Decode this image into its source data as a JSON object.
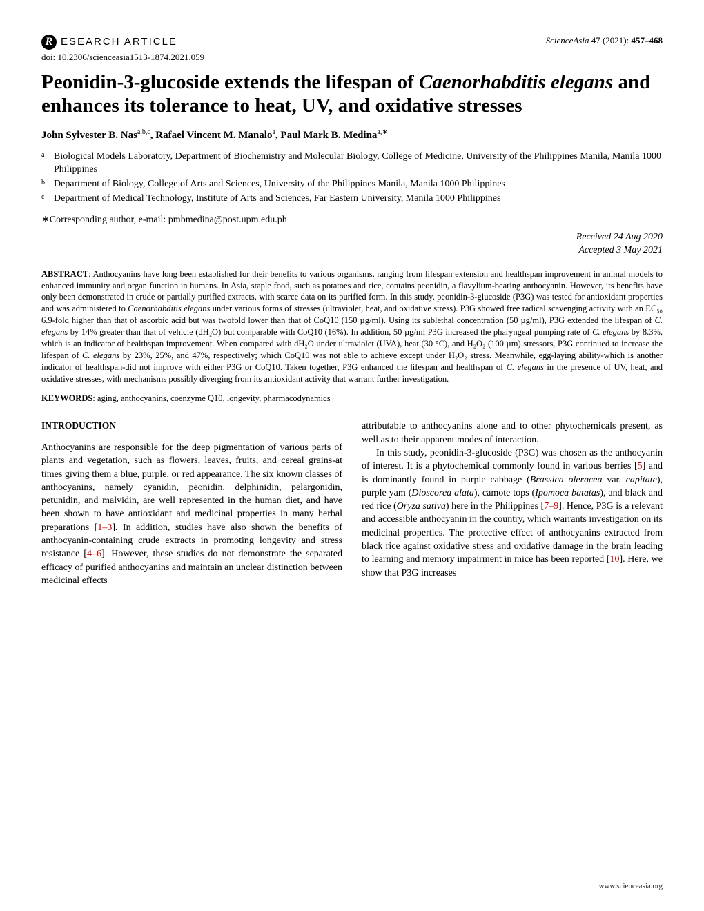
{
  "header": {
    "badge_letter": "R",
    "article_type": "ESEARCH  ARTICLE",
    "journal_name": "ScienceAsia",
    "volume": "47",
    "year": "(2021):",
    "pages": "457–468",
    "doi": "doi: 10.2306/scienceasia1513-1874.2021.059"
  },
  "title": {
    "part1": "Peonidin-3-glucoside extends the lifespan of ",
    "species": "Caenorhabditis elegans",
    "part2": " and enhances its tolerance to heat, UV, and oxidative stresses"
  },
  "authors": {
    "a1_name": "John Sylvester B. Nas",
    "a1_aff": "a,b,c",
    "a2_name": ", Rafael Vincent M. Manalo",
    "a2_aff": "a",
    "a3_name": ", Paul Mark B. Medina",
    "a3_aff": "a,∗"
  },
  "affiliations": {
    "a_sup": "a",
    "a_text": "Biological Models Laboratory, Department of Biochemistry and Molecular Biology, College of Medicine, University of the Philippines Manila, Manila 1000 Philippines",
    "b_sup": "b",
    "b_text": "Department of Biology, College of Arts and Sciences, University of the Philippines Manila, Manila 1000 Philippines",
    "c_sup": "c",
    "c_text": "Department of Medical Technology, Institute of Arts and Sciences, Far Eastern University, Manila 1000 Philippines"
  },
  "corresponding": "∗Corresponding author, e-mail: pmbmedina@post.upm.edu.ph",
  "dates": {
    "received": "Received  24 Aug 2020",
    "accepted": "Accepted  3 May 2021"
  },
  "abstract": {
    "label": "ABSTRACT",
    "t1": ": Anthocyanins have long been established for their benefits to various organisms, ranging from lifespan extension and healthspan improvement in animal models to enhanced immunity and organ function in humans. In Asia, staple food, such as potatoes and rice, contains peonidin, a flavylium-bearing anthocyanin. However, its benefits have only been demonstrated in crude or partially purified extracts, with scarce data on its purified form. In this study, peonidin-3-glucoside (P3G) was tested for antioxidant properties and was administered to ",
    "sp1": "Caenorhabditis elegans",
    "t2": " under various forms of stresses (ultraviolet, heat, and oxidative stress). P3G showed free radical scavenging activity with an EC₅₀ 6.9-fold higher than that of ascorbic acid but was twofold lower than that of CoQ10 (150 µg/ml). Using its sublethal concentration (50 µg/ml), P3G extended the lifespan of ",
    "sp2": "C. elegans",
    "t3": " by 14% greater than that of vehicle (dH₂O) but comparable with CoQ10 (16%). In addition, 50 µg/ml P3G increased the pharyngeal pumping rate of ",
    "sp3": "C. elegans",
    "t4": " by 8.3%, which is an indicator of healthspan improvement. When compared with dH₂O under ultraviolet (UVA), heat (30 °C), and H₂O₂ (100 µm) stressors, P3G continued to increase the lifespan of ",
    "sp4": "C. elegans",
    "t5": " by 23%, 25%, and 47%, respectively; which CoQ10 was not able to achieve except under H₂O₂ stress. Meanwhile, egg-laying ability-which is another indicator of healthspan-did not improve with either P3G or CoQ10. Taken together, P3G enhanced the lifespan and healthspan of ",
    "sp5": "C. elegans",
    "t6": " in the presence of UV, heat, and oxidative stresses, with mechanisms possibly diverging from its antioxidant activity that warrant further investigation."
  },
  "keywords": {
    "label": "KEYWORDS",
    "text": ": aging, anthocyanins, coenzyme Q10, longevity, pharmacodynamics"
  },
  "body": {
    "intro_heading": "INTRODUCTION",
    "col1": {
      "p1a": "Anthocyanins are responsible for the deep pigmentation of various parts of plants and vegetation, such as flowers, leaves, fruits, and cereal grains-at times giving them a blue, purple, or red appearance. The six known classes of anthocyanins, namely cyanidin, peonidin, delphinidin, pelargonidin, petunidin, and malvidin, are well represented in the human diet, and have been shown to have antioxidant and medicinal properties in many herbal preparations [",
      "r1": "1–3",
      "p1b": "]. In addition, studies have also shown the benefits of anthocyanin-containing crude extracts in promoting longevity and stress resistance [",
      "r2": "4–6",
      "p1c": "]. However, these studies do not demonstrate the separated efficacy of purified anthocyanins and maintain an unclear distinction between medicinal effects"
    },
    "col2": {
      "p1": "attributable to anthocyanins alone and to other phytochemicals present, as well as to their apparent modes of interaction.",
      "p2a": "In this study, peonidin-3-glucoside (P3G) was chosen as the anthocyanin of interest. It is a phytochemical commonly found in various berries [",
      "r1": "5",
      "p2b": "] and is dominantly found in purple cabbage (",
      "sp1": "Brassica oleracea",
      "p2c": " var. ",
      "sp2": "capitate",
      "p2d": "), purple yam (",
      "sp3": "Dioscorea alata",
      "p2e": "), camote tops (",
      "sp4": "Ipomoea batatas",
      "p2f": "), and black and red rice (",
      "sp5": "Oryza sativa",
      "p2g": ") here in the Philippines [",
      "r2": "7–9",
      "p2h": "]. Hence, P3G is a relevant and accessible anthocyanin in the country, which warrants investigation on its medicinal properties. The protective effect of anthocyanins extracted from black rice against oxidative stress and oxidative damage in the brain leading to learning and memory impairment in mice has been reported [",
      "r3": "10",
      "p2i": "]. Here, we show that P3G increases"
    }
  },
  "footer": "www.scienceasia.org",
  "colors": {
    "ref_link": "#cc0000",
    "text": "#000000",
    "background": "#ffffff"
  }
}
